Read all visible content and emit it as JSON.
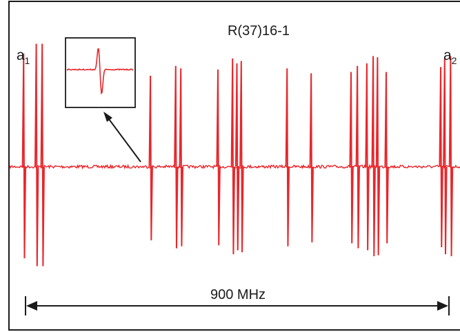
{
  "chart_data": {
    "type": "line",
    "title": "R(37)16-1",
    "xlabel": "",
    "ylabel": "",
    "grid": false,
    "legend": "none",
    "colors": {
      "signal": "#e8262b",
      "frame": "#1a1a1a"
    },
    "span": {
      "label": "900 MHz",
      "value_mhz": 900
    },
    "series": [
      {
        "lines": [
          {
            "x": 5,
            "a": 0.92,
            "label": "a",
            "sub": "1"
          },
          {
            "x": 37,
            "a": 1.0
          },
          {
            "x": 52,
            "a": 1.0
          },
          {
            "x": 326,
            "a": 0.74
          },
          {
            "x": 390,
            "a": 0.82
          },
          {
            "x": 403,
            "a": 0.8
          },
          {
            "x": 497,
            "a": 0.79
          },
          {
            "x": 534,
            "a": 0.88
          },
          {
            "x": 545,
            "a": 0.84
          },
          {
            "x": 556,
            "a": 0.86
          },
          {
            "x": 672,
            "a": 0.8
          },
          {
            "x": 733,
            "a": 0.76
          },
          {
            "x": 834,
            "a": 0.77
          },
          {
            "x": 850,
            "a": 0.82
          },
          {
            "x": 874,
            "a": 0.84
          },
          {
            "x": 890,
            "a": 0.9
          },
          {
            "x": 901,
            "a": 0.89
          },
          {
            "x": 923,
            "a": 0.77
          },
          {
            "x": 1061,
            "a": 0.81
          },
          {
            "x": 1071,
            "a": 0.88
          },
          {
            "x": 1086,
            "a": 0.9,
            "label": "a",
            "sub": "2"
          }
        ]
      }
    ]
  },
  "inset": {
    "note": "zoom-in of a single derivative line"
  }
}
